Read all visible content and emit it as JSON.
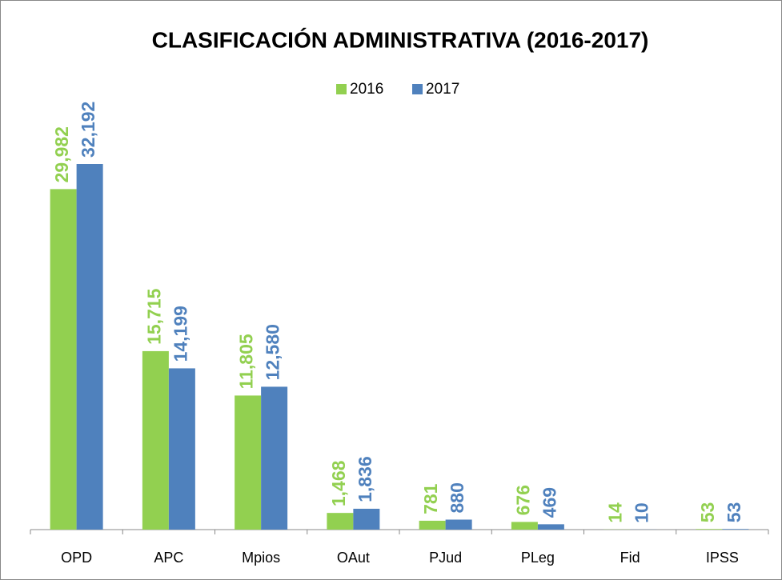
{
  "chart_data": {
    "type": "bar",
    "title": "CLASIFICACIÓN ADMINISTRATIVA (2016-2017)",
    "categories": [
      "OPD",
      "APC",
      "Mpios",
      "OAut",
      "PJud",
      "PLeg",
      "Fid",
      "IPSS"
    ],
    "series": [
      {
        "name": "2016",
        "color": "#92d050",
        "values": [
          29982,
          15715,
          11805,
          1468,
          781,
          676,
          14,
          53
        ],
        "value_labels": [
          "29,982",
          "15,715",
          "11,805",
          "1,468",
          "781",
          "676",
          "14",
          "53"
        ]
      },
      {
        "name": "2017",
        "color": "#4f81bd",
        "values": [
          32192,
          14199,
          12580,
          1836,
          880,
          469,
          10,
          53
        ],
        "value_labels": [
          "32,192",
          "14,199",
          "12,580",
          "1,836",
          "880",
          "469",
          "10",
          "53"
        ]
      }
    ],
    "legend": "top"
  }
}
